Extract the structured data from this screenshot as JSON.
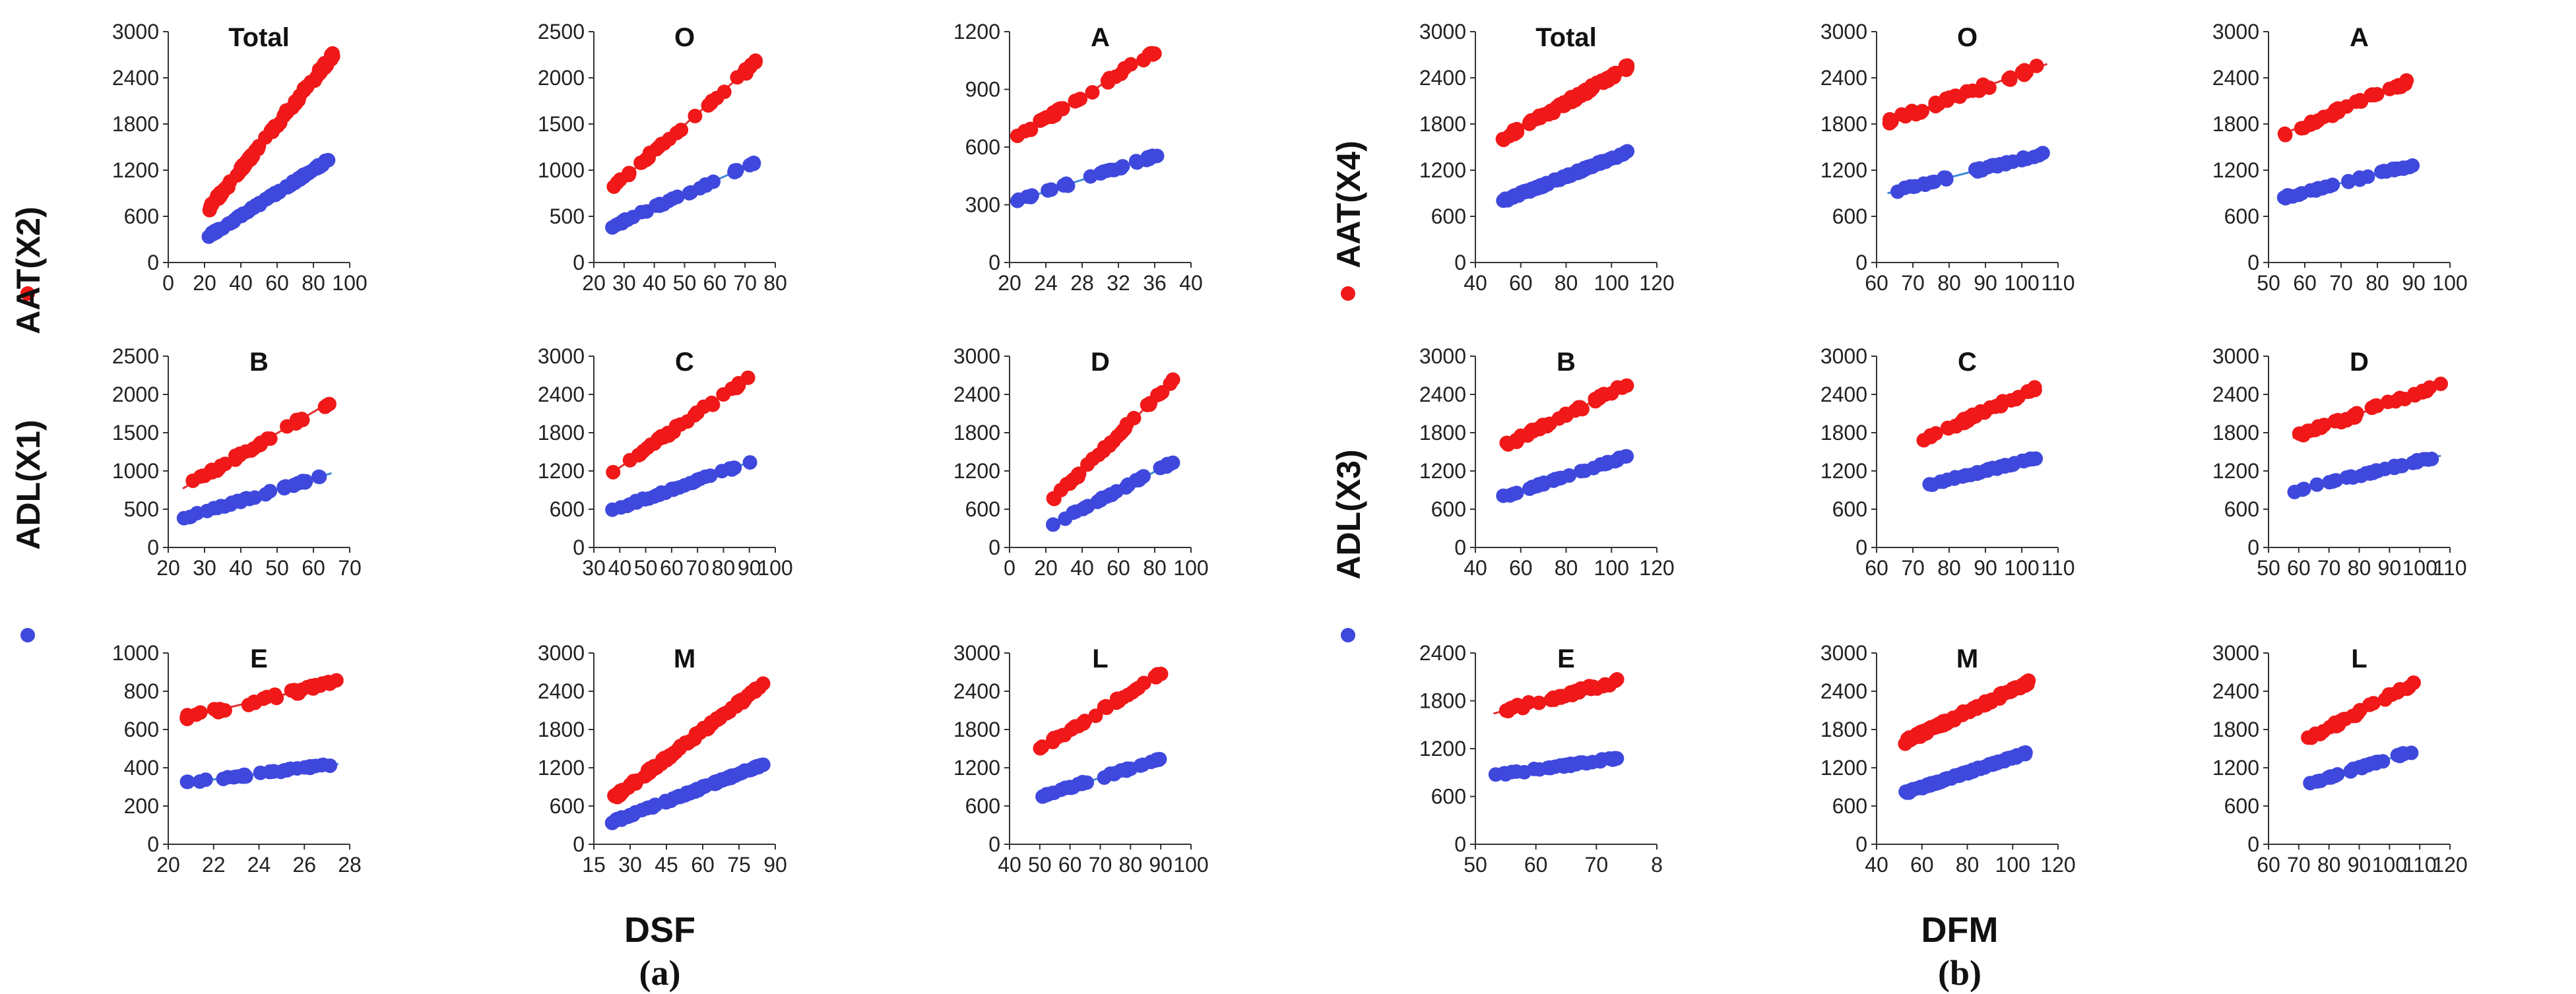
{
  "colors": {
    "red": "#f01818",
    "blue": "#3f48dc",
    "red_line": "#e03030",
    "blue_line": "#3c8ad8"
  },
  "labels": {
    "a": {
      "xlabel": "DSF",
      "tag": "(a)",
      "ylabel_top": "AAT(X2)",
      "ylabel_bottom": "ADL(X1)"
    },
    "b": {
      "xlabel": "DFM",
      "tag": "(b)",
      "ylabel_top": "AAT(X4)",
      "ylabel_bottom": "ADL(X3)"
    }
  },
  "chart_data": [
    {
      "panel": "a",
      "type": "scatter",
      "title": "Total",
      "xticks": [
        "0",
        "20",
        "40",
        "60",
        "80",
        "100"
      ],
      "xlim": [
        0,
        100
      ],
      "yticks": [
        "0",
        "600",
        "1200",
        "1800",
        "2400",
        "3000"
      ],
      "ylim": [
        0,
        3000
      ],
      "series": [
        {
          "name": "AAT(X2)",
          "color": "red",
          "x": [
            22,
            91
          ],
          "y": [
            690,
            2700
          ]
        },
        {
          "name": "ADL(X1)",
          "color": "blue",
          "x": [
            22,
            91
          ],
          "y": [
            340,
            1370
          ]
        }
      ]
    },
    {
      "panel": "a",
      "type": "scatter",
      "title": "O",
      "xticks": [
        "20",
        "30",
        "40",
        "50",
        "60",
        "70",
        "80"
      ],
      "xlim": [
        20,
        80
      ],
      "yticks": [
        "0",
        "500",
        "1000",
        "1500",
        "2000",
        "2500"
      ],
      "ylim": [
        0,
        2500
      ],
      "series": [
        {
          "name": "AAT(X2)",
          "color": "red",
          "x": [
            26,
            74
          ],
          "y": [
            800,
            2180
          ]
        },
        {
          "name": "ADL(X1)",
          "color": "blue",
          "x": [
            26,
            74
          ],
          "y": [
            390,
            1090
          ]
        }
      ]
    },
    {
      "panel": "a",
      "type": "scatter",
      "title": "A",
      "xticks": [
        "20",
        "24",
        "28",
        "32",
        "36",
        "40"
      ],
      "xlim": [
        20,
        40
      ],
      "yticks": [
        "0",
        "300",
        "600",
        "900",
        "1200"
      ],
      "ylim": [
        0,
        1200
      ],
      "series": [
        {
          "name": "AAT(X2)",
          "color": "red",
          "x": [
            20.8,
            36.5
          ],
          "y": [
            650,
            1110
          ]
        },
        {
          "name": "ADL(X1)",
          "color": "blue",
          "x": [
            20.8,
            36.5
          ],
          "y": [
            320,
            560
          ]
        }
      ]
    },
    {
      "panel": "a",
      "type": "scatter",
      "title": "B",
      "xticks": [
        "20",
        "30",
        "40",
        "50",
        "60",
        "70"
      ],
      "xlim": [
        20,
        70
      ],
      "yticks": [
        "0",
        "500",
        "1000",
        "1500",
        "2000",
        "2500"
      ],
      "ylim": [
        0,
        2500
      ],
      "series": [
        {
          "name": "AAT(X2)",
          "color": "red",
          "x": [
            24,
            65
          ],
          "y": [
            770,
            1910
          ]
        },
        {
          "name": "ADL(X1)",
          "color": "blue",
          "x": [
            24,
            65
          ],
          "y": [
            380,
            970
          ]
        }
      ]
    },
    {
      "panel": "a",
      "type": "scatter",
      "title": "C",
      "xticks": [
        "30",
        "40",
        "50",
        "60",
        "70",
        "80",
        "90",
        "100"
      ],
      "xlim": [
        30,
        100
      ],
      "yticks": [
        "0",
        "600",
        "1200",
        "1800",
        "2400",
        "3000"
      ],
      "ylim": [
        0,
        3000
      ],
      "series": [
        {
          "name": "AAT(X2)",
          "color": "red",
          "x": [
            37,
            91
          ],
          "y": [
            1170,
            2700
          ]
        },
        {
          "name": "ADL(X1)",
          "color": "blue",
          "x": [
            37,
            91
          ],
          "y": [
            580,
            1350
          ]
        }
      ]
    },
    {
      "panel": "a",
      "type": "scatter",
      "title": "D",
      "xticks": [
        "0",
        "20",
        "40",
        "60",
        "80",
        "100"
      ],
      "xlim": [
        0,
        100
      ],
      "yticks": [
        "0",
        "600",
        "1200",
        "1800",
        "2400",
        "3000"
      ],
      "ylim": [
        0,
        3000
      ],
      "series": [
        {
          "name": "AAT(X2)",
          "color": "red",
          "x": [
            22,
            91
          ],
          "y": [
            690,
            2650
          ]
        },
        {
          "name": "ADL(X1)",
          "color": "blue",
          "x": [
            22,
            91
          ],
          "y": [
            340,
            1350
          ]
        }
      ]
    },
    {
      "panel": "a",
      "type": "scatter",
      "title": "E",
      "xticks": [
        "20",
        "22",
        "24",
        "26",
        "28"
      ],
      "xlim": [
        20,
        28
      ],
      "yticks": [
        "0",
        "200",
        "400",
        "600",
        "800",
        "1000"
      ],
      "ylim": [
        0,
        1000
      ],
      "series": [
        {
          "name": "AAT(X2)",
          "color": "red",
          "x": [
            20.7,
            27.5
          ],
          "y": [
            660,
            850
          ]
        },
        {
          "name": "ADL(X1)",
          "color": "blue",
          "x": [
            20.7,
            27.5
          ],
          "y": [
            320,
            420
          ]
        }
      ]
    },
    {
      "panel": "a",
      "type": "scatter",
      "title": "M",
      "xticks": [
        "15",
        "30",
        "45",
        "60",
        "75",
        "90"
      ],
      "xlim": [
        15,
        90
      ],
      "yticks": [
        "0",
        "600",
        "1200",
        "1800",
        "2400",
        "3000"
      ],
      "ylim": [
        0,
        3000
      ],
      "series": [
        {
          "name": "AAT(X2)",
          "color": "red",
          "x": [
            22,
            85
          ],
          "y": [
            690,
            2500
          ]
        },
        {
          "name": "ADL(X1)",
          "color": "blue",
          "x": [
            22,
            85
          ],
          "y": [
            340,
            1250
          ]
        }
      ]
    },
    {
      "panel": "a",
      "type": "scatter",
      "title": "L",
      "xticks": [
        "40",
        "50",
        "60",
        "70",
        "80",
        "90",
        "100"
      ],
      "xlim": [
        40,
        100
      ],
      "yticks": [
        "0",
        "600",
        "1200",
        "1800",
        "2400",
        "3000"
      ],
      "ylim": [
        0,
        3000
      ],
      "series": [
        {
          "name": "AAT(X2)",
          "color": "red",
          "x": [
            50,
            91
          ],
          "y": [
            1500,
            2700
          ]
        },
        {
          "name": "ADL(X1)",
          "color": "blue",
          "x": [
            50,
            91
          ],
          "y": [
            750,
            1350
          ]
        }
      ]
    },
    {
      "panel": "b",
      "type": "scatter",
      "title": "Total",
      "xticks": [
        "40",
        "60",
        "80",
        "100",
        "120"
      ],
      "xlim": [
        40,
        120
      ],
      "yticks": [
        "0",
        "600",
        "1200",
        "1800",
        "2400",
        "3000"
      ],
      "ylim": [
        0,
        3000
      ],
      "series": [
        {
          "name": "AAT(X4)",
          "color": "red",
          "x": [
            52,
            108
          ],
          "y": [
            1600,
            2550
          ]
        },
        {
          "name": "ADL(X3)",
          "color": "blue",
          "x": [
            52,
            108
          ],
          "y": [
            800,
            1440
          ]
        }
      ]
    },
    {
      "panel": "b",
      "type": "scatter",
      "title": "O",
      "xticks": [
        "60",
        "70",
        "80",
        "90",
        "100",
        "110"
      ],
      "xlim": [
        60,
        110
      ],
      "yticks": [
        "0",
        "600",
        "1200",
        "1800",
        "2400",
        "3000"
      ],
      "ylim": [
        0,
        3000
      ],
      "series": [
        {
          "name": "AAT(X4)",
          "color": "red",
          "x": [
            63,
            107
          ],
          "y": [
            1820,
            2580
          ]
        },
        {
          "name": "ADL(X3)",
          "color": "blue",
          "x": [
            63,
            107
          ],
          "y": [
            900,
            1430
          ]
        }
      ]
    },
    {
      "panel": "b",
      "type": "scatter",
      "title": "A",
      "xticks": [
        "50",
        "60",
        "70",
        "80",
        "90",
        "100"
      ],
      "xlim": [
        50,
        100
      ],
      "yticks": [
        "0",
        "600",
        "1200",
        "1800",
        "2400",
        "3000"
      ],
      "ylim": [
        0,
        3000
      ],
      "series": [
        {
          "name": "AAT(X4)",
          "color": "red",
          "x": [
            53,
            90
          ],
          "y": [
            1650,
            2380
          ]
        },
        {
          "name": "ADL(X3)",
          "color": "blue",
          "x": [
            53,
            90
          ],
          "y": [
            830,
            1270
          ]
        }
      ]
    },
    {
      "panel": "b",
      "type": "scatter",
      "title": "B",
      "xticks": [
        "40",
        "60",
        "80",
        "100",
        "120"
      ],
      "xlim": [
        40,
        120
      ],
      "yticks": [
        "0",
        "600",
        "1200",
        "1800",
        "2400",
        "3000"
      ],
      "ylim": [
        0,
        3000
      ],
      "series": [
        {
          "name": "AAT(X4)",
          "color": "red",
          "x": [
            52,
            107
          ],
          "y": [
            1580,
            2560
          ]
        },
        {
          "name": "ADL(X3)",
          "color": "blue",
          "x": [
            52,
            107
          ],
          "y": [
            790,
            1430
          ]
        }
      ]
    },
    {
      "panel": "b",
      "type": "scatter",
      "title": "C",
      "xticks": [
        "60",
        "70",
        "80",
        "90",
        "100",
        "110"
      ],
      "xlim": [
        60,
        110
      ],
      "yticks": [
        "0",
        "600",
        "1200",
        "1800",
        "2400",
        "3000"
      ],
      "ylim": [
        0,
        3000
      ],
      "series": [
        {
          "name": "AAT(X4)",
          "color": "red",
          "x": [
            73,
            105
          ],
          "y": [
            1700,
            2520
          ]
        },
        {
          "name": "ADL(X3)",
          "color": "blue",
          "x": [
            73,
            105
          ],
          "y": [
            960,
            1420
          ]
        }
      ]
    },
    {
      "panel": "b",
      "type": "scatter",
      "title": "D",
      "xticks": [
        "50",
        "60",
        "70",
        "80",
        "90",
        "100",
        "110"
      ],
      "xlim": [
        50,
        110
      ],
      "yticks": [
        "0",
        "600",
        "1200",
        "1800",
        "2400",
        "3000"
      ],
      "ylim": [
        0,
        3000
      ],
      "series": [
        {
          "name": "AAT(X4)",
          "color": "red",
          "x": [
            58,
            107
          ],
          "y": [
            1720,
            2560
          ]
        },
        {
          "name": "ADL(X3)",
          "color": "blue",
          "x": [
            58,
            107
          ],
          "y": [
            880,
            1440
          ]
        }
      ]
    },
    {
      "panel": "b",
      "type": "scatter",
      "title": "E",
      "xticks": [
        "50",
        "60",
        "70",
        "8"
      ],
      "xlim": [
        50,
        80
      ],
      "yticks": [
        "0",
        "600",
        "1200",
        "1800",
        "2400"
      ],
      "ylim": [
        0,
        2400
      ],
      "series": [
        {
          "name": "AAT(X4)",
          "color": "red",
          "x": [
            53,
            73.5
          ],
          "y": [
            1640,
            2050
          ]
        },
        {
          "name": "ADL(X3)",
          "color": "blue",
          "x": [
            53,
            73.5
          ],
          "y": [
            860,
            1080
          ]
        }
      ]
    },
    {
      "panel": "b",
      "type": "scatter",
      "title": "M",
      "xticks": [
        "40",
        "60",
        "80",
        "100",
        "120"
      ],
      "xlim": [
        40,
        120
      ],
      "yticks": [
        "0",
        "600",
        "1200",
        "1800",
        "2400",
        "3000"
      ],
      "ylim": [
        0,
        3000
      ],
      "series": [
        {
          "name": "AAT(X4)",
          "color": "red",
          "x": [
            52,
            107
          ],
          "y": [
            1600,
            2540
          ]
        },
        {
          "name": "ADL(X3)",
          "color": "blue",
          "x": [
            52,
            107
          ],
          "y": [
            800,
            1440
          ]
        }
      ]
    },
    {
      "panel": "b",
      "type": "scatter",
      "title": "L",
      "xticks": [
        "60",
        "70",
        "80",
        "90",
        "100",
        "110",
        "120"
      ],
      "xlim": [
        60,
        120
      ],
      "yticks": [
        "0",
        "600",
        "1200",
        "1800",
        "2400",
        "3000"
      ],
      "ylim": [
        0,
        3000
      ],
      "series": [
        {
          "name": "AAT(X4)",
          "color": "red",
          "x": [
            73,
            108
          ],
          "y": [
            1650,
            2520
          ]
        },
        {
          "name": "ADL(X3)",
          "color": "blue",
          "x": [
            73,
            108
          ],
          "y": [
            950,
            1460
          ]
        }
      ]
    }
  ]
}
